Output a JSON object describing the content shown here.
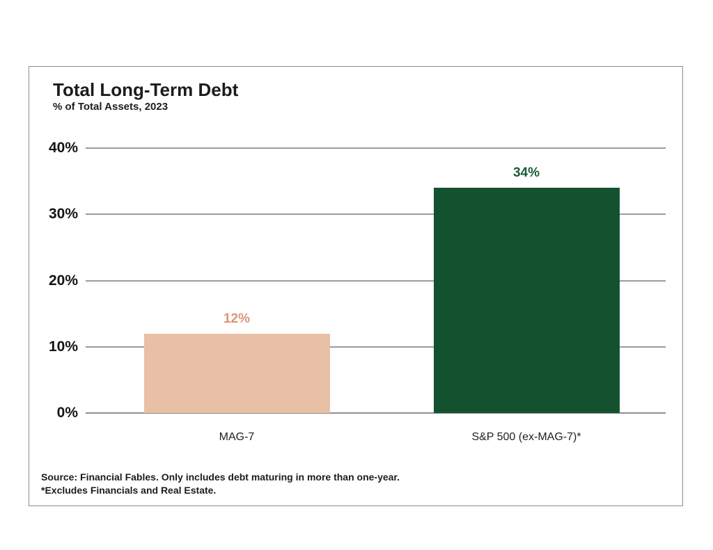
{
  "header": {
    "title": "Total Long-Term Debt",
    "subtitle": "% of Total Assets, 2023"
  },
  "footer": {
    "source_line1": "Source: Financial Fables. Only includes debt maturing in more than one-year.",
    "source_line2": "*Excludes Financials and Real Estate."
  },
  "colors": {
    "mag7_bar": "#e8c0a6",
    "mag7_label": "#de9379",
    "sp500_bar": "#14522f",
    "sp500_label": "#1d5c38",
    "gridline": "#9a9a9a",
    "axis_line": "#8e8e8e",
    "frame_border": "#8c8c8c",
    "text": "#1c1c1c"
  },
  "chart_data": {
    "type": "bar",
    "title": "Total Long-Term Debt",
    "subtitle": "% of Total Assets, 2023",
    "categories": [
      "MAG-7",
      "S&P 500 (ex-MAG-7)*"
    ],
    "values": [
      12,
      34
    ],
    "value_labels": [
      "12%",
      "34%"
    ],
    "bar_colors": [
      "#e8c0a6",
      "#14522f"
    ],
    "value_label_colors": [
      "#de9379",
      "#1d5c38"
    ],
    "xlabel": "",
    "ylabel": "",
    "ylim": [
      0,
      40
    ],
    "yticks": [
      0,
      10,
      20,
      30,
      40
    ],
    "ytick_labels": [
      "0%",
      "10%",
      "20%",
      "30%",
      "40%"
    ],
    "grid": true,
    "legend": "none",
    "source": "Source: Financial Fables. Only includes debt maturing in more than one-year. *Excludes Financials and Real Estate."
  }
}
